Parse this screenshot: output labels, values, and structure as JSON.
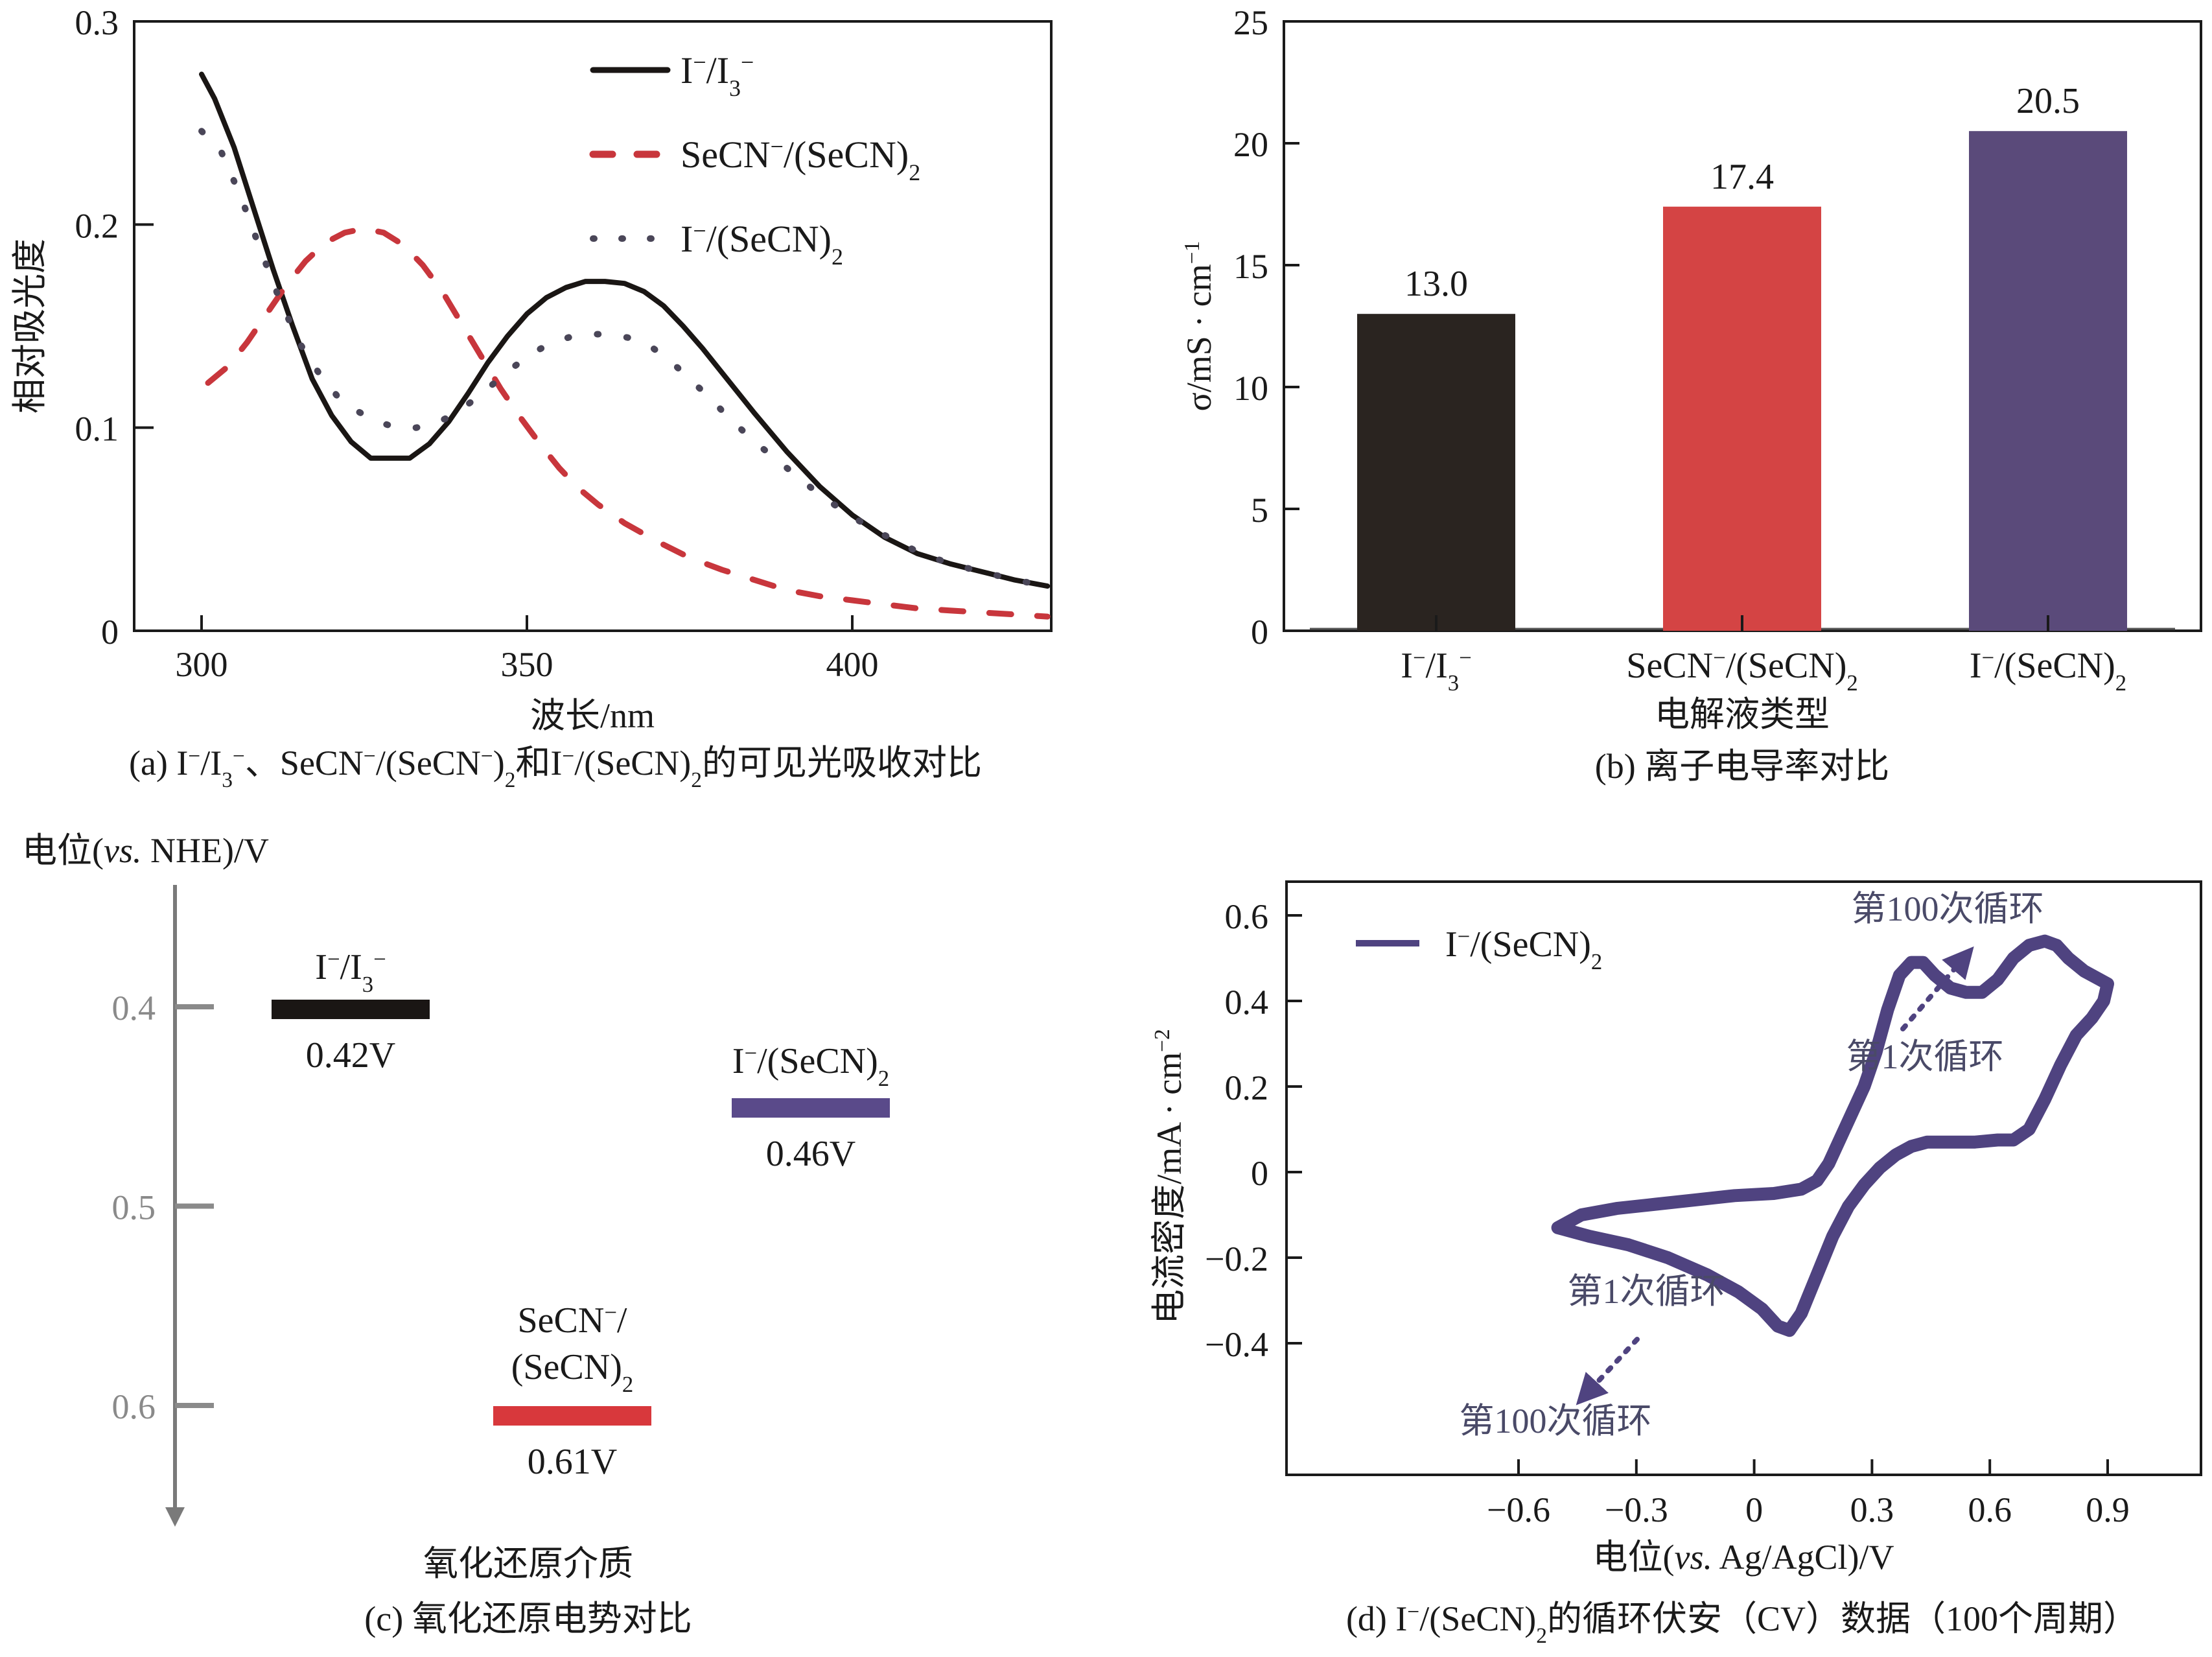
{
  "figure": {
    "panels": [
      "a",
      "b",
      "c",
      "d"
    ]
  },
  "chart_data": [
    {
      "id": "a",
      "type": "line",
      "caption": "(a) I⁻/I₃⁻、SeCN⁻/(SeCN⁻)₂和I⁻/(SeCN)₂的可见光吸收对比",
      "xlabel": "波长/nm",
      "ylabel": "相对吸光度",
      "xlim": [
        290,
        430
      ],
      "ylim": [
        0,
        0.3
      ],
      "xticks": [
        300,
        350,
        400
      ],
      "yticks": [
        0,
        0.1,
        0.2,
        0.3
      ],
      "ytick_labels": [
        "0",
        "0.1",
        "0.2",
        "0.3"
      ],
      "legend_position": "top-right",
      "series": [
        {
          "name": "I⁻/I₃⁻",
          "label_main": "I",
          "label_parts": [
            [
              "I",
              ""
            ],
            [
              "−",
              "sup"
            ],
            [
              "/I",
              ""
            ],
            [
              "3",
              "sub-sup"
            ]
          ],
          "color": "#1a1614",
          "style": "solid",
          "x": [
            300,
            302,
            305,
            308,
            311,
            314,
            317,
            320,
            323,
            326,
            329,
            332,
            335,
            338,
            341,
            344,
            347,
            350,
            353,
            356,
            359,
            362,
            365,
            368,
            371,
            374,
            377,
            380,
            385,
            390,
            395,
            400,
            405,
            410,
            415,
            420,
            425,
            430
          ],
          "y": [
            0.274,
            0.262,
            0.238,
            0.208,
            0.178,
            0.15,
            0.124,
            0.106,
            0.093,
            0.085,
            0.085,
            0.085,
            0.092,
            0.103,
            0.117,
            0.132,
            0.145,
            0.156,
            0.164,
            0.169,
            0.172,
            0.172,
            0.171,
            0.167,
            0.16,
            0.15,
            0.139,
            0.127,
            0.107,
            0.088,
            0.071,
            0.057,
            0.046,
            0.038,
            0.033,
            0.029,
            0.025,
            0.022
          ]
        },
        {
          "name": "SeCN⁻/(SeCN)₂",
          "color": "#c8363c",
          "style": "dashed",
          "x": [
            301,
            304,
            307,
            310,
            313,
            316,
            319,
            322,
            325,
            328,
            331,
            334,
            337,
            340,
            343,
            346,
            349,
            352,
            355,
            358,
            361,
            365,
            370,
            375,
            380,
            385,
            390,
            395,
            400,
            405,
            410,
            415,
            420,
            425,
            430
          ],
          "y": [
            0.122,
            0.13,
            0.142,
            0.156,
            0.17,
            0.182,
            0.191,
            0.196,
            0.198,
            0.196,
            0.19,
            0.18,
            0.167,
            0.151,
            0.135,
            0.119,
            0.105,
            0.092,
            0.08,
            0.07,
            0.062,
            0.053,
            0.044,
            0.036,
            0.03,
            0.025,
            0.02,
            0.017,
            0.015,
            0.013,
            0.011,
            0.01,
            0.009,
            0.008,
            0.007
          ]
        },
        {
          "name": "I⁻/(SeCN)₂",
          "color": "#4a4658",
          "style": "dotted",
          "x": [
            300,
            303,
            306,
            309,
            312,
            315,
            318,
            321,
            324,
            327,
            330,
            333,
            336,
            339,
            342,
            345,
            348,
            351,
            354,
            357,
            360,
            363,
            366,
            369,
            372,
            375,
            378,
            381,
            385,
            390,
            395,
            400,
            405,
            410,
            415,
            420,
            425,
            430
          ],
          "y": [
            0.246,
            0.236,
            0.214,
            0.188,
            0.163,
            0.142,
            0.127,
            0.115,
            0.108,
            0.103,
            0.1,
            0.1,
            0.102,
            0.107,
            0.114,
            0.122,
            0.13,
            0.137,
            0.142,
            0.145,
            0.146,
            0.146,
            0.144,
            0.14,
            0.133,
            0.124,
            0.115,
            0.105,
            0.093,
            0.08,
            0.067,
            0.056,
            0.047,
            0.039,
            0.033,
            0.029,
            0.025,
            0.022
          ]
        }
      ]
    },
    {
      "id": "b",
      "type": "bar",
      "caption": "(b) 离子电导率对比",
      "xlabel": "电解液类型",
      "ylabel": "σ/mS · cm⁻¹",
      "ylim": [
        0,
        25
      ],
      "yticks": [
        0,
        5,
        10,
        15,
        20,
        25
      ],
      "categories": [
        "I⁻/I₃⁻",
        "SeCN⁻/(SeCN)₂",
        "I⁻/(SeCN)₂"
      ],
      "values": [
        13.0,
        17.4,
        20.5
      ],
      "value_labels": [
        "13.0",
        "17.4",
        "20.5"
      ],
      "colors": [
        "#2a2420",
        "#d44444",
        "#5a4a7a"
      ]
    },
    {
      "id": "c",
      "type": "diagram",
      "caption": "(c) 氧化还原电势对比",
      "ylabel": "电位(vs. NHE)/V",
      "xlabel": "氧化还原介质",
      "ylim": [
        0.36,
        0.66
      ],
      "axis_inverted": true,
      "yticks": [
        0.4,
        0.5,
        0.6
      ],
      "ytick_labels": [
        "0.4",
        "0.5",
        "0.6"
      ],
      "levels": [
        {
          "name": "I⁻/I₃⁻",
          "value": 0.42,
          "label": "0.42V",
          "color": "#1a1614"
        },
        {
          "name": "I⁻/(SeCN)₂",
          "value": 0.46,
          "label": "0.46V",
          "color": "#5a4a8a"
        },
        {
          "name": "SeCN⁻/(SeCN)₂",
          "value": 0.61,
          "label": "0.61V",
          "color": "#d8383c"
        }
      ]
    },
    {
      "id": "d",
      "type": "line",
      "caption": "(d) I⁻/(SeCN)₂的循环伏安（CV）数据（100个周期）",
      "xlabel": "电位(vs. Ag/AgCl)/V",
      "ylabel": "电流密度/mA · cm⁻²",
      "xlim": [
        -0.7,
        1.1
      ],
      "ylim": [
        -0.5,
        0.7
      ],
      "xticks": [
        -0.6,
        -0.3,
        0,
        0.3,
        0.6,
        0.9
      ],
      "xtick_labels": [
        "−0.6",
        "−0.3",
        "0",
        "0.3",
        "0.6",
        "0.9"
      ],
      "yticks": [
        -0.4,
        -0.2,
        0,
        0.2,
        0.4,
        0.6
      ],
      "ytick_labels": [
        "−0.4",
        "−0.2",
        "0",
        "0.2",
        "0.4",
        "0.6"
      ],
      "legend_position": "top-left",
      "series": [
        {
          "name": "I⁻/(SeCN)₂",
          "color": "#4f4380",
          "x": [
            -0.5,
            -0.44,
            -0.35,
            -0.25,
            -0.15,
            -0.05,
            0.05,
            0.12,
            0.16,
            0.19,
            0.22,
            0.25,
            0.28,
            0.31,
            0.34,
            0.37,
            0.4,
            0.43,
            0.46,
            0.5,
            0.54,
            0.58,
            0.62,
            0.66,
            0.7,
            0.74,
            0.77,
            0.8,
            0.84,
            0.88,
            0.9,
            0.89,
            0.86,
            0.82,
            0.78,
            0.74,
            0.7,
            0.66,
            0.62,
            0.56,
            0.5,
            0.44,
            0.4,
            0.36,
            0.32,
            0.28,
            0.24,
            0.2,
            0.16,
            0.12,
            0.09,
            0.06,
            0.02,
            -0.04,
            -0.12,
            -0.22,
            -0.32,
            -0.42,
            -0.5
          ],
          "y": [
            -0.13,
            -0.1,
            -0.085,
            -0.075,
            -0.065,
            -0.055,
            -0.05,
            -0.04,
            -0.02,
            0.02,
            0.08,
            0.14,
            0.2,
            0.28,
            0.38,
            0.46,
            0.49,
            0.49,
            0.46,
            0.43,
            0.42,
            0.42,
            0.45,
            0.5,
            0.53,
            0.54,
            0.53,
            0.5,
            0.47,
            0.45,
            0.44,
            0.4,
            0.36,
            0.32,
            0.25,
            0.17,
            0.1,
            0.075,
            0.075,
            0.07,
            0.07,
            0.07,
            0.06,
            0.04,
            0.01,
            -0.03,
            -0.08,
            -0.15,
            -0.24,
            -0.33,
            -0.37,
            -0.36,
            -0.32,
            -0.28,
            -0.24,
            -0.2,
            -0.17,
            -0.15,
            -0.13
          ]
        }
      ],
      "annotations": [
        {
          "text": "第100次循环",
          "where": "upper arrow tip"
        },
        {
          "text": "第1次循环",
          "where": "upper arrow tail"
        },
        {
          "text": "第1次循环",
          "where": "lower arrow tail"
        },
        {
          "text": "第100次循环",
          "where": "lower arrow tip"
        }
      ]
    }
  ],
  "labels": {
    "a_legend": [
      "I⁻/I₃⁻",
      "SeCN⁻/(SeCN)₂",
      "I⁻/(SeCN)₂"
    ],
    "d_legend": "I⁻/(SeCN)₂"
  }
}
